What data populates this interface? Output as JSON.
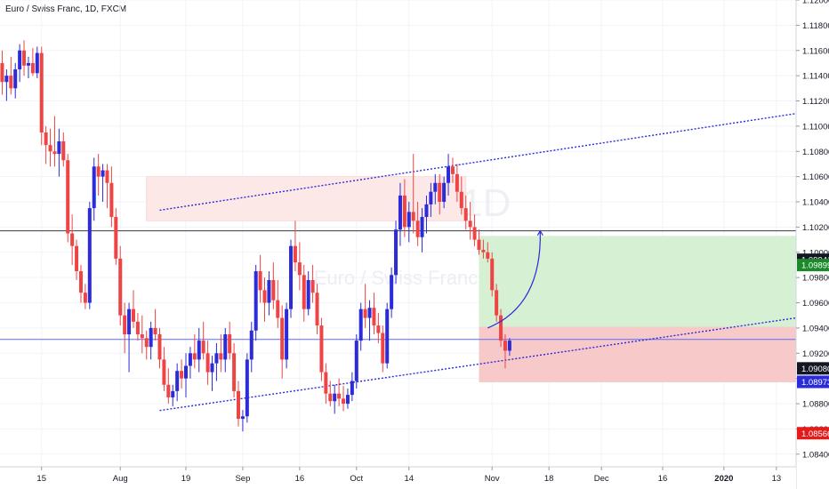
{
  "header": {
    "title": "Euro / Swiss Franc, 1D, FXCM"
  },
  "watermark": {
    "symbol": "EURCHF, 1D",
    "name": "Euro / Swiss Franc"
  },
  "chart_data": {
    "type": "candlestick",
    "ylim": [
      1.083,
      1.12
    ],
    "y_ticks": [
      "1.08400",
      "1.08600",
      "1.08800",
      "1.09000",
      "1.09200",
      "1.09400",
      "1.09600",
      "1.09800",
      "1.10000",
      "1.10200",
      "1.10400",
      "1.10600",
      "1.10800",
      "1.11000",
      "1.11200",
      "1.11400",
      "1.11600",
      "1.11800",
      "1.12000"
    ],
    "x_ticks": [
      "15",
      "Aug",
      "19",
      "Sep",
      "16",
      "Oct",
      "14",
      "Nov",
      "18",
      "Dec",
      "16",
      "2020",
      "13"
    ],
    "x_tick_index": [
      9,
      27,
      42,
      55,
      68,
      81,
      93,
      112,
      125,
      137,
      151,
      165,
      177
    ],
    "n_slots": 182,
    "colors": {
      "up": "#2b2bd9",
      "down": "#ef4444",
      "grid": "#f0f3fa",
      "axis_text": "#131722"
    },
    "candles": [
      [
        1.115,
        1.116,
        1.1125,
        1.1135
      ],
      [
        1.1135,
        1.1145,
        1.112,
        1.114
      ],
      [
        1.114,
        1.1155,
        1.1125,
        1.113
      ],
      [
        1.113,
        1.115,
        1.1122,
        1.1145
      ],
      [
        1.1145,
        1.1165,
        1.1135,
        1.116
      ],
      [
        1.116,
        1.1168,
        1.114,
        1.1148
      ],
      [
        1.1148,
        1.1155,
        1.1138,
        1.115
      ],
      [
        1.115,
        1.1162,
        1.114,
        1.1142
      ],
      [
        1.1142,
        1.1163,
        1.1138,
        1.1158
      ],
      [
        1.1158,
        1.1163,
        1.1085,
        1.1095
      ],
      [
        1.1095,
        1.11,
        1.107,
        1.1085
      ],
      [
        1.1085,
        1.1098,
        1.1068,
        1.108
      ],
      [
        1.108,
        1.1108,
        1.1068,
        1.1078
      ],
      [
        1.1078,
        1.1098,
        1.106,
        1.1088
      ],
      [
        1.1088,
        1.1095,
        1.1068,
        1.1073
      ],
      [
        1.1073,
        1.1078,
        1.1008,
        1.1015
      ],
      [
        1.1015,
        1.103,
        1.099,
        1.1005
      ],
      [
        1.1005,
        1.101,
        1.0978,
        1.0985
      ],
      [
        1.0985,
        1.099,
        1.096,
        1.0968
      ],
      [
        1.0968,
        1.0975,
        1.0955,
        1.096
      ],
      [
        1.096,
        1.104,
        1.0955,
        1.1035
      ],
      [
        1.1035,
        1.1075,
        1.1025,
        1.1068
      ],
      [
        1.1068,
        1.1078,
        1.1045,
        1.106
      ],
      [
        1.106,
        1.107,
        1.104,
        1.1065
      ],
      [
        1.1065,
        1.107,
        1.1035,
        1.1055
      ],
      [
        1.1055,
        1.1068,
        1.102,
        1.1028
      ],
      [
        1.1028,
        1.1035,
        1.099,
        1.0995
      ],
      [
        1.0995,
        1.1005,
        1.0942,
        1.095
      ],
      [
        1.095,
        1.096,
        1.092,
        1.0935
      ],
      [
        1.0935,
        1.096,
        1.0905,
        1.0955
      ],
      [
        1.0955,
        1.097,
        1.094,
        1.0945
      ],
      [
        1.0945,
        1.0952,
        1.093,
        1.0935
      ],
      [
        1.0935,
        1.095,
        1.092,
        1.0932
      ],
      [
        1.0932,
        1.0938,
        1.0915,
        1.0925
      ],
      [
        1.0925,
        1.0945,
        1.0915,
        1.094
      ],
      [
        1.094,
        1.0955,
        1.093,
        1.0935
      ],
      [
        1.0935,
        1.094,
        1.0908,
        1.0915
      ],
      [
        1.0915,
        1.0925,
        1.089,
        1.0895
      ],
      [
        1.0895,
        1.0908,
        1.088,
        1.0885
      ],
      [
        1.0885,
        1.0895,
        1.0878,
        1.089
      ],
      [
        1.089,
        1.0912,
        1.0882,
        1.0906
      ],
      [
        1.0906,
        1.0915,
        1.0892,
        1.09
      ],
      [
        1.09,
        1.092,
        1.0885,
        1.091
      ],
      [
        1.091,
        1.0925,
        1.09,
        1.092
      ],
      [
        1.092,
        1.0935,
        1.0908,
        1.0915
      ],
      [
        1.0915,
        1.094,
        1.0905,
        1.093
      ],
      [
        1.093,
        1.0945,
        1.0915,
        1.092
      ],
      [
        1.092,
        1.093,
        1.0895,
        1.0905
      ],
      [
        1.0905,
        1.0918,
        1.089,
        1.0912
      ],
      [
        1.0912,
        1.0928,
        1.0898,
        1.092
      ],
      [
        1.092,
        1.0935,
        1.0905,
        1.0915
      ],
      [
        1.0915,
        1.094,
        1.0905,
        1.0935
      ],
      [
        1.0935,
        1.0945,
        1.0915,
        1.092
      ],
      [
        1.092,
        1.0928,
        1.0885,
        1.089
      ],
      [
        1.089,
        1.0898,
        1.0862,
        1.0868
      ],
      [
        1.0868,
        1.0875,
        1.0858,
        1.087
      ],
      [
        1.087,
        1.092,
        1.0865,
        1.0915
      ],
      [
        1.0915,
        1.0945,
        1.0905,
        1.0938
      ],
      [
        1.0938,
        1.099,
        1.093,
        1.0985
      ],
      [
        1.0985,
        1.0998,
        1.096,
        1.097
      ],
      [
        1.097,
        1.098,
        1.0945,
        1.096
      ],
      [
        1.096,
        1.0985,
        1.095,
        1.0978
      ],
      [
        1.0978,
        1.0992,
        1.0955,
        1.0962
      ],
      [
        1.0962,
        1.0978,
        1.094,
        1.0948
      ],
      [
        1.0948,
        1.0958,
        1.09,
        1.0915
      ],
      [
        1.0915,
        1.096,
        1.0908,
        1.0955
      ],
      [
        1.0955,
        1.101,
        1.0948,
        1.1005
      ],
      [
        1.1005,
        1.1025,
        1.0985,
        1.0992
      ],
      [
        1.0992,
        1.1008,
        1.097,
        1.0982
      ],
      [
        1.0982,
        1.099,
        1.0945,
        1.0955
      ],
      [
        1.0955,
        1.0985,
        1.095,
        1.0978
      ],
      [
        1.0978,
        1.099,
        1.096,
        1.0968
      ],
      [
        1.0968,
        1.0975,
        1.0935,
        1.0942
      ],
      [
        1.0942,
        1.0948,
        1.0898,
        1.0905
      ],
      [
        1.0905,
        1.0912,
        1.088,
        1.0888
      ],
      [
        1.0888,
        1.0898,
        1.0878,
        1.0882
      ],
      [
        1.0882,
        1.0895,
        1.0872,
        1.0888
      ],
      [
        1.0888,
        1.09,
        1.0878,
        1.0884
      ],
      [
        1.0884,
        1.0894,
        1.0874,
        1.088
      ],
      [
        1.088,
        1.0892,
        1.0876,
        1.0887
      ],
      [
        1.0887,
        1.0905,
        1.0882,
        1.0898
      ],
      [
        1.0898,
        1.0935,
        1.0892,
        1.093
      ],
      [
        1.093,
        1.096,
        1.0922,
        1.0955
      ],
      [
        1.0955,
        1.0975,
        1.094,
        1.0948
      ],
      [
        1.0948,
        1.0962,
        1.093,
        1.0956
      ],
      [
        1.0956,
        1.0968,
        1.0935,
        1.0942
      ],
      [
        1.0942,
        1.0952,
        1.0928,
        1.0936
      ],
      [
        1.0936,
        1.0942,
        1.0905,
        1.0912
      ],
      [
        1.0912,
        1.096,
        1.0908,
        1.0955
      ],
      [
        1.0955,
        1.0988,
        1.0948,
        1.0982
      ],
      [
        1.0982,
        1.1025,
        1.0975,
        1.1018
      ],
      [
        1.1018,
        1.1055,
        1.1005,
        1.1045
      ],
      [
        1.1045,
        1.1058,
        1.1012,
        1.102
      ],
      [
        1.102,
        1.104,
        1.1008,
        1.1032
      ],
      [
        1.1032,
        1.1078,
        1.1015,
        1.1025
      ],
      [
        1.1025,
        1.104,
        1.1005,
        1.1012
      ],
      [
        1.1012,
        1.1035,
        1.1,
        1.1028
      ],
      [
        1.1028,
        1.1045,
        1.1015,
        1.1038
      ],
      [
        1.1038,
        1.1055,
        1.1028,
        1.1048
      ],
      [
        1.1048,
        1.1062,
        1.1038,
        1.1055
      ],
      [
        1.1055,
        1.1062,
        1.103,
        1.104
      ],
      [
        1.104,
        1.106,
        1.1035,
        1.1055
      ],
      [
        1.1055,
        1.1078,
        1.1045,
        1.1068
      ],
      [
        1.1068,
        1.1075,
        1.1055,
        1.1062
      ],
      [
        1.1062,
        1.107,
        1.104,
        1.1048
      ],
      [
        1.1048,
        1.106,
        1.103,
        1.1035
      ],
      [
        1.1035,
        1.1045,
        1.1018,
        1.1025
      ],
      [
        1.1025,
        1.104,
        1.101,
        1.102
      ],
      [
        1.102,
        1.103,
        1.1005,
        1.101
      ],
      [
        1.101,
        1.1018,
        1.0998,
        1.1002
      ],
      [
        1.1002,
        1.101,
        1.0995,
        1.1
      ],
      [
        1.1,
        1.1008,
        1.0992,
        1.0995
      ],
      [
        1.0995,
        1.1,
        1.0965,
        1.097
      ],
      [
        1.097,
        1.0975,
        1.0945,
        1.095
      ],
      [
        1.095,
        1.0955,
        1.0925,
        1.093
      ],
      [
        1.093,
        1.0935,
        1.0908,
        1.0922
      ],
      [
        1.0922,
        1.0932,
        1.0918,
        1.093
      ]
    ]
  },
  "drawings": {
    "resistance_zone": {
      "from_index": 0,
      "to_index": 106,
      "top": 1.106,
      "bottom": 1.1025,
      "color": "#f9dada",
      "fill": "#fde8e8"
    },
    "horizontal_line": {
      "price": 1.1017,
      "color": "#363a45"
    },
    "current_price_line": {
      "price": 1.0931,
      "color": "#5b6cff"
    },
    "channel_upper": {
      "x1": 1,
      "y1": 1.1015,
      "x2": 182,
      "y2": 1.111,
      "color": "#2b2bd9"
    },
    "channel_lower": {
      "x1": 1,
      "y1": 1.0857,
      "x2": 182,
      "y2": 1.0948,
      "color": "#2b2bd9"
    },
    "target_zone": {
      "from_index": 109,
      "to_index": 182,
      "top": 1.1013,
      "bottom": 1.0941,
      "fill": "#d6f0d4"
    },
    "stop_zone": {
      "from_index": 109,
      "to_index": 182,
      "top": 1.0941,
      "bottom": 1.0897,
      "fill": "#f8c9c9"
    },
    "arrow": {
      "color": "#2b2bd9"
    }
  },
  "price_labels": [
    {
      "value": "1.09941",
      "price": 1.09941,
      "bg": "#131722",
      "fg": "#ffffff"
    },
    {
      "value": "1.09899",
      "price": 1.09899,
      "bg": "#1a8a2b",
      "fg": "#ffffff"
    },
    {
      "value": "1.09080",
      "price": 1.0908,
      "bg": "#131722",
      "fg": "#ffffff"
    },
    {
      "value": "1.08973",
      "price": 1.08973,
      "bg": "#2b2bd9",
      "fg": "#ffffff"
    },
    {
      "value": "1.08566",
      "price": 1.08566,
      "bg": "#e31b1b",
      "fg": "#ffffff"
    }
  ]
}
